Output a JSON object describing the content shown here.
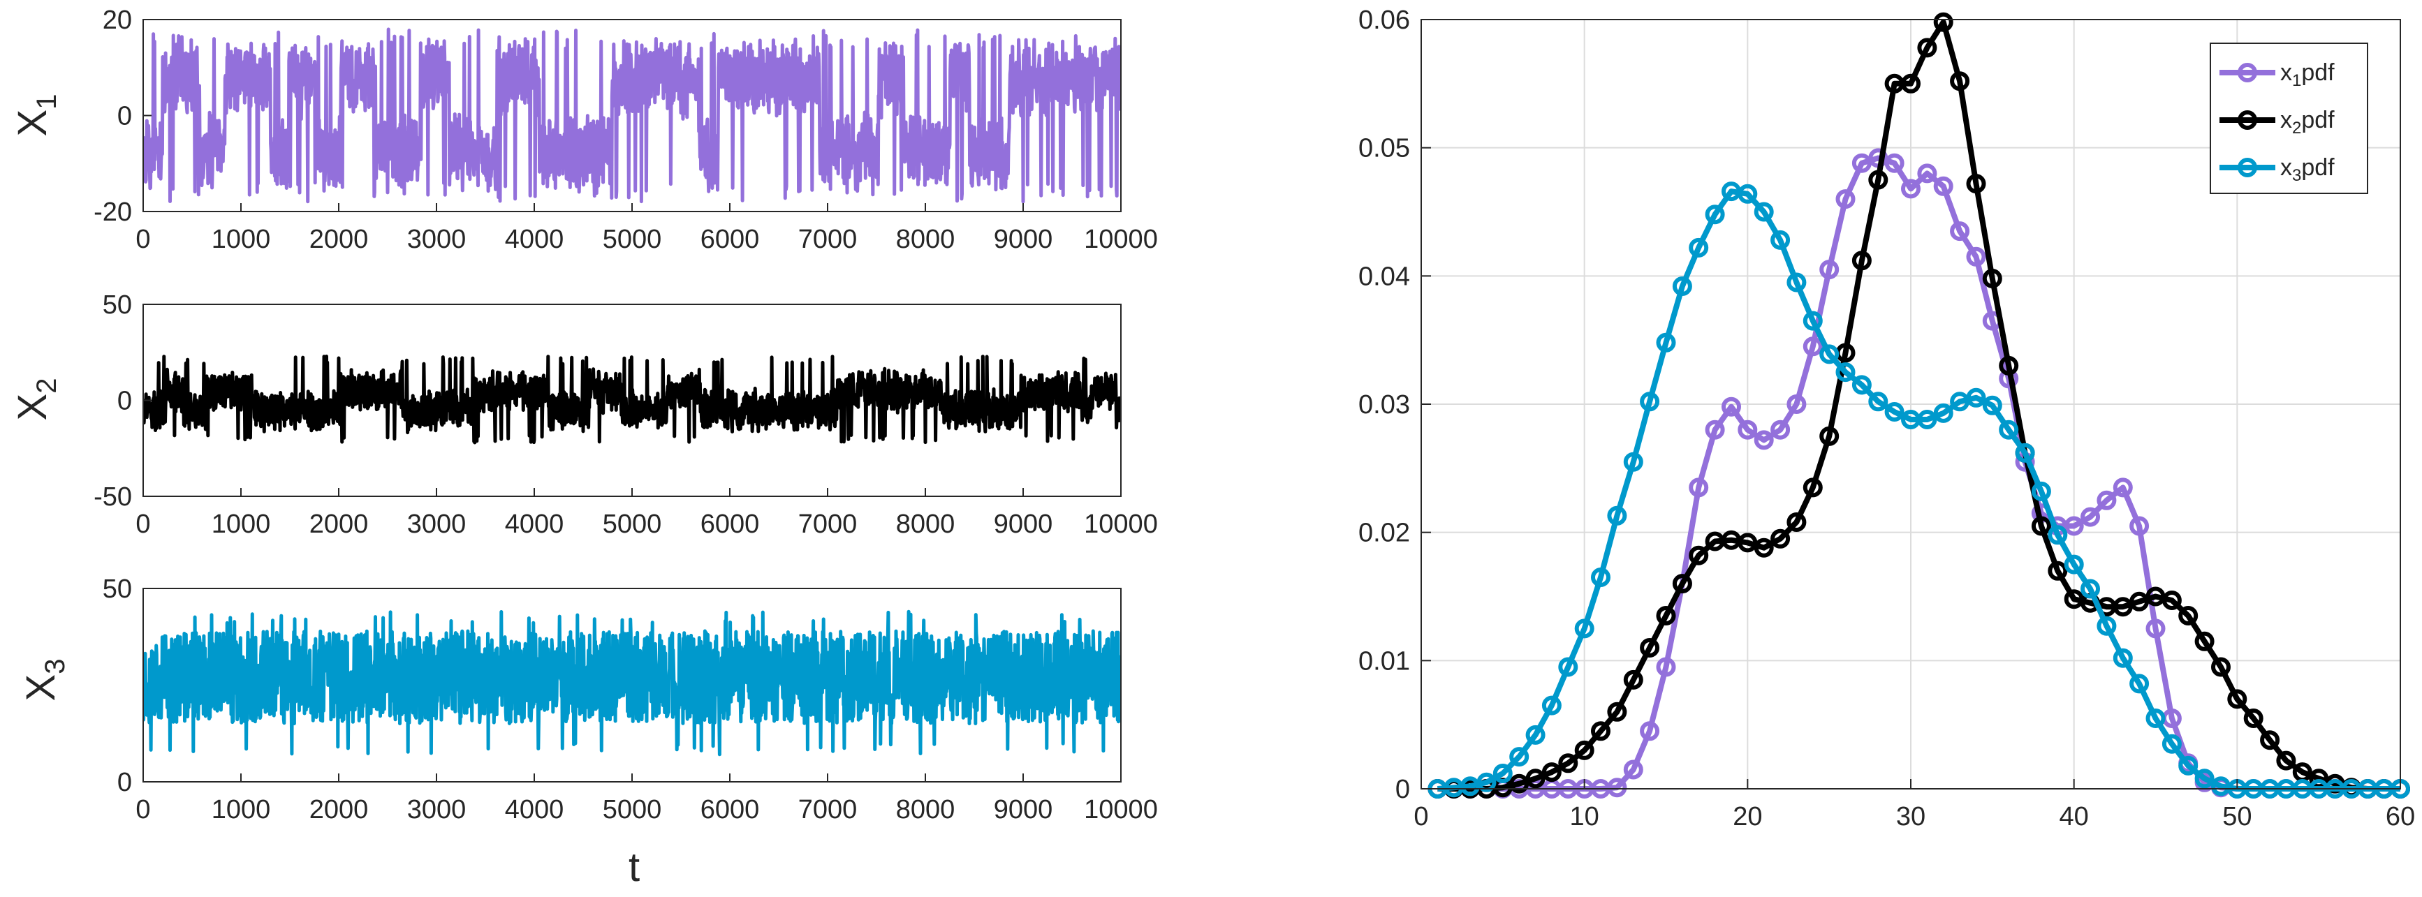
{
  "chart_data": [
    {
      "type": "line",
      "panel": "timeseries-1",
      "ylabel": "X",
      "ylabel_sub": "1",
      "xlabel": "",
      "xlim": [
        0,
        10000
      ],
      "ylim": [
        -20,
        20
      ],
      "xticks": [
        "0",
        "1000",
        "2000",
        "3000",
        "4000",
        "5000",
        "6000",
        "7000",
        "8000",
        "9000",
        "10000"
      ],
      "yticks": [
        "-20",
        "0",
        "20"
      ],
      "color": "#9370DB",
      "series_name": "X1(t)",
      "signal": {
        "mode": "bimodal",
        "center": 0,
        "level": 8,
        "amp": 9,
        "min": -18,
        "max": 18,
        "seed": 11
      }
    },
    {
      "type": "line",
      "panel": "timeseries-2",
      "ylabel": "X",
      "ylabel_sub": "2",
      "xlabel": "",
      "xlim": [
        0,
        10000
      ],
      "ylim": [
        -50,
        50
      ],
      "xticks": [
        "0",
        "1000",
        "2000",
        "3000",
        "4000",
        "5000",
        "6000",
        "7000",
        "8000",
        "9000",
        "10000"
      ],
      "yticks": [
        "-50",
        "0",
        "50"
      ],
      "color": "#000000",
      "series_name": "X2(t)",
      "signal": {
        "mode": "bimodal",
        "center": 0,
        "level": 5,
        "amp": 12,
        "min": -22,
        "max": 23,
        "seed": 23
      }
    },
    {
      "type": "line",
      "panel": "timeseries-3",
      "ylabel": "X",
      "ylabel_sub": "3",
      "xlabel": "t",
      "xlim": [
        0,
        10000
      ],
      "ylim": [
        0,
        50
      ],
      "xticks": [
        "0",
        "1000",
        "2000",
        "3000",
        "4000",
        "5000",
        "6000",
        "7000",
        "8000",
        "9000",
        "10000"
      ],
      "yticks": [
        "0",
        "50"
      ],
      "color": "#0099CC",
      "series_name": "X3(t)",
      "signal": {
        "mode": "oscillate",
        "center": 27,
        "level": 0,
        "amp": 12,
        "min": 7,
        "max": 44,
        "seed": 37
      }
    },
    {
      "type": "line",
      "panel": "pdf",
      "title": "",
      "xlabel": "",
      "ylabel": "",
      "xlim": [
        0,
        60
      ],
      "ylim": [
        0,
        0.06
      ],
      "xticks": [
        "0",
        "10",
        "20",
        "30",
        "40",
        "50",
        "60"
      ],
      "yticks": [
        "0",
        "0.01",
        "0.02",
        "0.03",
        "0.04",
        "0.05",
        "0.06"
      ],
      "grid": true,
      "legend_position": "top-right",
      "series": [
        {
          "name": "x1pdf",
          "label_main": "x",
          "label_sub": "1",
          "label_tail": "pdf",
          "color": "#9370DB",
          "x": [
            1,
            2,
            3,
            4,
            5,
            6,
            7,
            8,
            9,
            10,
            11,
            12,
            13,
            14,
            15,
            16,
            17,
            18,
            19,
            20,
            21,
            22,
            23,
            24,
            25,
            26,
            27,
            28,
            29,
            30,
            31,
            32,
            33,
            34,
            35,
            36,
            37,
            38,
            39,
            40,
            41,
            42,
            43,
            44,
            45,
            46,
            47,
            48,
            49,
            50,
            51,
            52,
            53,
            54,
            55,
            56,
            57,
            58,
            59,
            60
          ],
          "values": [
            0,
            0,
            0,
            0,
            0,
            0,
            0,
            0,
            0,
            0,
            0,
            0.0001,
            0.0015,
            0.0045,
            0.0095,
            0.016,
            0.0235,
            0.028,
            0.0298,
            0.028,
            0.0272,
            0.028,
            0.03,
            0.0345,
            0.0405,
            0.046,
            0.0488,
            0.0492,
            0.0488,
            0.0468,
            0.048,
            0.047,
            0.0435,
            0.0415,
            0.0365,
            0.032,
            0.0255,
            0.0215,
            0.0205,
            0.0205,
            0.0212,
            0.0225,
            0.0235,
            0.0205,
            0.0125,
            0.0055,
            0.002,
            0.0005,
            0.0001,
            0,
            0,
            0,
            0,
            0,
            0,
            0,
            0,
            0,
            0,
            0
          ]
        },
        {
          "name": "x2pdf",
          "label_main": "x",
          "label_sub": "2",
          "label_tail": "pdf",
          "color": "#000000",
          "x": [
            1,
            2,
            3,
            4,
            5,
            6,
            7,
            8,
            9,
            10,
            11,
            12,
            13,
            14,
            15,
            16,
            17,
            18,
            19,
            20,
            21,
            22,
            23,
            24,
            25,
            26,
            27,
            28,
            29,
            30,
            31,
            32,
            33,
            34,
            35,
            36,
            37,
            38,
            39,
            40,
            41,
            42,
            43,
            44,
            45,
            46,
            47,
            48,
            49,
            50,
            51,
            52,
            53,
            54,
            55,
            56,
            57,
            58,
            59,
            60
          ],
          "values": [
            0,
            0,
            0,
            0,
            0.0001,
            0.0004,
            0.0008,
            0.0013,
            0.002,
            0.003,
            0.0045,
            0.006,
            0.0085,
            0.011,
            0.0135,
            0.016,
            0.0182,
            0.0193,
            0.0194,
            0.0192,
            0.0188,
            0.0195,
            0.0208,
            0.0235,
            0.0275,
            0.034,
            0.0412,
            0.0475,
            0.055,
            0.055,
            0.0578,
            0.0598,
            0.0552,
            0.0472,
            0.0398,
            0.033,
            0.0262,
            0.0205,
            0.017,
            0.0148,
            0.0145,
            0.0142,
            0.0142,
            0.0146,
            0.015,
            0.0147,
            0.0135,
            0.0115,
            0.0095,
            0.007,
            0.0055,
            0.0038,
            0.0022,
            0.0013,
            0.0008,
            0.0004,
            0.0001,
            0,
            0,
            0
          ]
        },
        {
          "name": "x3pdf",
          "label_main": "x",
          "label_sub": "3",
          "label_tail": "pdf",
          "color": "#0099CC",
          "x": [
            1,
            2,
            3,
            4,
            5,
            6,
            7,
            8,
            9,
            10,
            11,
            12,
            13,
            14,
            15,
            16,
            17,
            18,
            19,
            20,
            21,
            22,
            23,
            24,
            25,
            26,
            27,
            28,
            29,
            30,
            31,
            32,
            33,
            34,
            35,
            36,
            37,
            38,
            39,
            40,
            41,
            42,
            43,
            44,
            45,
            46,
            47,
            48,
            49,
            50,
            51,
            52,
            53,
            54,
            55,
            56,
            57,
            58,
            59,
            60
          ],
          "values": [
            0,
            0.0001,
            0.0002,
            0.0005,
            0.0012,
            0.0025,
            0.0042,
            0.0065,
            0.0095,
            0.0125,
            0.0165,
            0.0213,
            0.0255,
            0.0302,
            0.0348,
            0.0392,
            0.0422,
            0.0448,
            0.0466,
            0.0464,
            0.045,
            0.0428,
            0.0395,
            0.0365,
            0.0339,
            0.0325,
            0.0315,
            0.0302,
            0.0294,
            0.0288,
            0.0288,
            0.0293,
            0.0302,
            0.0305,
            0.0299,
            0.028,
            0.0262,
            0.0232,
            0.0198,
            0.0175,
            0.0156,
            0.0127,
            0.0102,
            0.0082,
            0.0055,
            0.0035,
            0.0018,
            0.0008,
            0.0002,
            0,
            0,
            0,
            0,
            0,
            0,
            0,
            0,
            0,
            0,
            0
          ]
        }
      ]
    }
  ]
}
